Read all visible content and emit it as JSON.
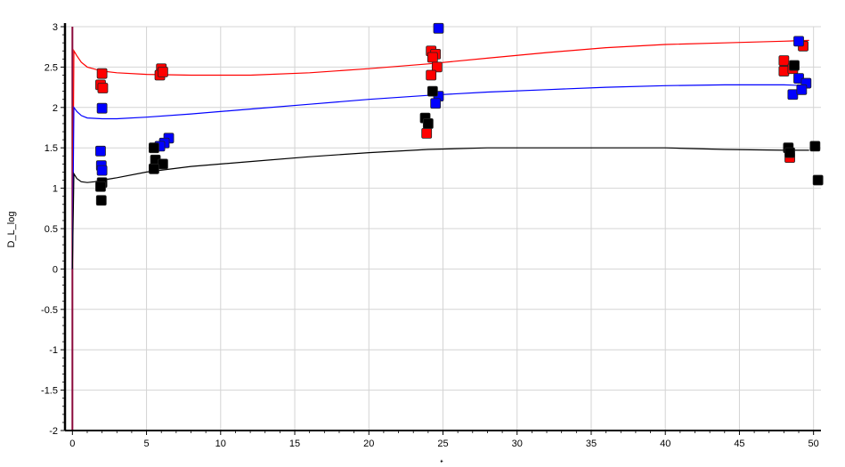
{
  "chart_data": {
    "type": "scatter",
    "title": "",
    "xlabel": "t",
    "ylabel": "D_L_log",
    "xlim": [
      -0.5,
      50.5
    ],
    "ylim": [
      -2,
      3
    ],
    "x_ticks": [
      0,
      5,
      10,
      15,
      20,
      25,
      30,
      35,
      40,
      45,
      50
    ],
    "x_tick_labels": [
      "0",
      "5",
      "10",
      "15",
      "20",
      "25",
      "30",
      "35",
      "40",
      "45",
      "50"
    ],
    "y_ticks": [
      -2,
      -1.5,
      -1,
      -0.5,
      0,
      0.5,
      1,
      1.5,
      2,
      2.5,
      3
    ],
    "y_tick_labels": [
      "-2",
      "-1.5",
      "-1",
      "-0.5",
      "0",
      "0.5",
      "1",
      "1.5",
      "2",
      "2.5",
      "3"
    ],
    "grid": true,
    "colors": {
      "red": "#ff0000",
      "blue": "#0000ff",
      "black": "#000000",
      "grid": "#d4d4d4",
      "spike": "#8b0a3c"
    },
    "lines": [
      {
        "color": "red",
        "x": [
          0,
          0.1,
          0.3,
          0.6,
          1,
          2,
          3,
          5,
          8,
          12,
          16,
          20,
          24,
          28,
          32,
          36,
          40,
          44,
          48,
          49.7
        ],
        "y": [
          0,
          2.7,
          2.64,
          2.56,
          2.5,
          2.45,
          2.43,
          2.41,
          2.4,
          2.4,
          2.43,
          2.48,
          2.54,
          2.61,
          2.68,
          2.74,
          2.78,
          2.8,
          2.82,
          2.83
        ]
      },
      {
        "color": "blue",
        "x": [
          0,
          0.1,
          0.3,
          0.6,
          1,
          2,
          3,
          5,
          8,
          12,
          16,
          20,
          24,
          28,
          32,
          36,
          40,
          44,
          48,
          49.7
        ],
        "y": [
          0,
          2.0,
          1.95,
          1.9,
          1.87,
          1.86,
          1.86,
          1.88,
          1.92,
          1.98,
          2.04,
          2.1,
          2.15,
          2.19,
          2.22,
          2.25,
          2.27,
          2.28,
          2.28,
          2.27
        ]
      },
      {
        "color": "black",
        "x": [
          0,
          0.1,
          0.3,
          0.6,
          1,
          1.5,
          2,
          3,
          5,
          8,
          12,
          16,
          20,
          24,
          28,
          32,
          36,
          40,
          44,
          48,
          49.7
        ],
        "y": [
          0,
          1.18,
          1.12,
          1.08,
          1.07,
          1.08,
          1.1,
          1.13,
          1.2,
          1.27,
          1.33,
          1.39,
          1.44,
          1.48,
          1.5,
          1.5,
          1.5,
          1.5,
          1.48,
          1.47,
          1.47
        ]
      }
    ],
    "spike": {
      "x": 0,
      "y": [
        -2,
        3
      ]
    },
    "series": [
      {
        "color": "red",
        "points": [
          [
            2,
            2.42
          ],
          [
            1.9,
            2.28
          ],
          [
            2.05,
            2.24
          ],
          [
            6,
            2.48
          ],
          [
            5.9,
            2.4
          ],
          [
            6.1,
            2.44
          ],
          [
            24.2,
            2.7
          ],
          [
            24.5,
            2.66
          ],
          [
            24.3,
            2.62
          ],
          [
            24.6,
            2.5
          ],
          [
            24.2,
            2.4
          ],
          [
            23.9,
            1.68
          ],
          [
            48,
            2.58
          ],
          [
            48,
            2.45
          ],
          [
            48.6,
            2.48
          ],
          [
            49.3,
            2.76
          ],
          [
            48.4,
            1.38
          ]
        ]
      },
      {
        "color": "blue",
        "points": [
          [
            2,
            1.99
          ],
          [
            1.9,
            1.46
          ],
          [
            1.95,
            1.28
          ],
          [
            2,
            1.22
          ],
          [
            6.5,
            1.62
          ],
          [
            6.2,
            1.56
          ],
          [
            5.9,
            1.52
          ],
          [
            24.7,
            2.98
          ],
          [
            24.7,
            2.14
          ],
          [
            24.5,
            2.05
          ],
          [
            49,
            2.82
          ],
          [
            49,
            2.36
          ],
          [
            49.5,
            2.3
          ],
          [
            48.6,
            2.16
          ],
          [
            49.2,
            2.22
          ]
        ]
      },
      {
        "color": "black",
        "points": [
          [
            2,
            1.07
          ],
          [
            1.9,
            1.02
          ],
          [
            1.95,
            0.85
          ],
          [
            5.5,
            1.5
          ],
          [
            5.6,
            1.35
          ],
          [
            6.1,
            1.3
          ],
          [
            5.5,
            1.24
          ],
          [
            24.3,
            2.2
          ],
          [
            23.8,
            1.87
          ],
          [
            24,
            1.8
          ],
          [
            48.7,
            2.52
          ],
          [
            48.3,
            1.5
          ],
          [
            48.4,
            1.44
          ],
          [
            50.1,
            1.52
          ],
          [
            50.3,
            1.1
          ]
        ]
      }
    ]
  }
}
